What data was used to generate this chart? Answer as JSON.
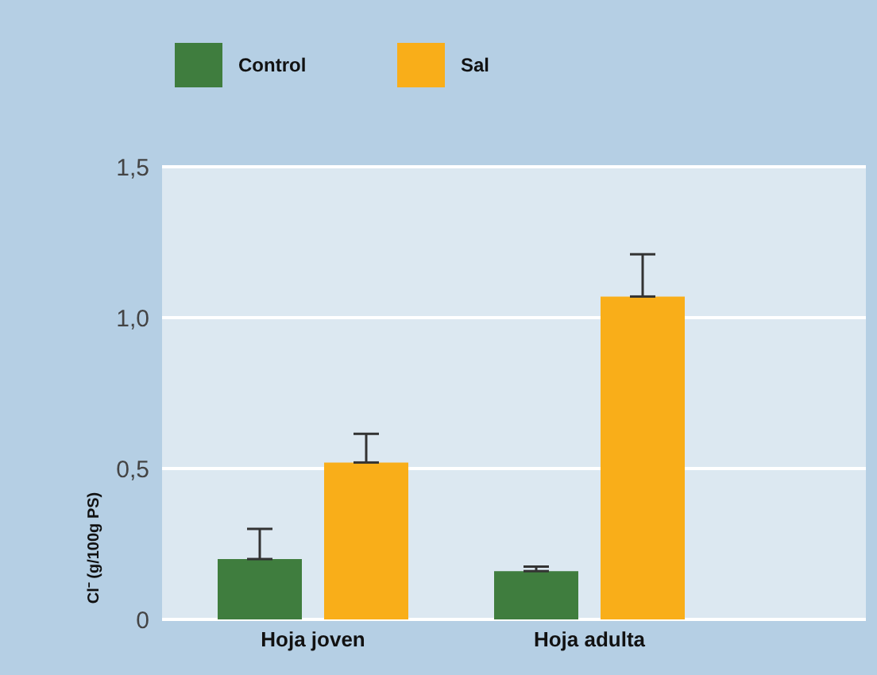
{
  "chart_data": {
    "type": "bar",
    "categories": [
      "Hoja joven",
      "Hoja adulta"
    ],
    "ylabel": "Cl⁻ (g/100g PS)",
    "series": [
      {
        "name": "Control",
        "color": "#3f7d3e",
        "values": [
          0.2,
          0.16
        ],
        "errors": [
          [
            0.2,
            0.3
          ],
          [
            0.16,
            0.175
          ]
        ]
      },
      {
        "name": "Sal",
        "color": "#f9ae19",
        "values": [
          0.52,
          1.07
        ],
        "errors": [
          [
            0.52,
            0.615
          ],
          [
            1.07,
            1.21
          ]
        ]
      }
    ],
    "ylim": [
      0,
      1.5
    ],
    "yticks": [
      {
        "value": 0,
        "label": "0"
      },
      {
        "value": 0.5,
        "label": "0,5"
      },
      {
        "value": 1,
        "label": "1,0"
      },
      {
        "value": 1.5,
        "label": "1,5"
      }
    ],
    "grid": "y",
    "legend": "top left"
  }
}
